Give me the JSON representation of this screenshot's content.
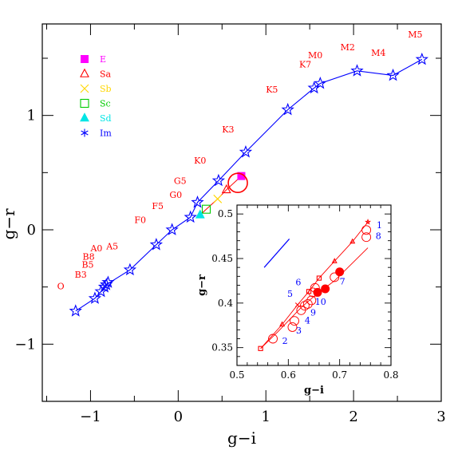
{
  "chart_data": [
    {
      "type": "scatter",
      "xlabel": "g−i",
      "ylabel": "g−r",
      "xlim": [
        -1.55,
        3.0
      ],
      "ylim": [
        -1.5,
        1.8
      ],
      "xticks": [
        -1,
        0,
        1,
        2,
        3
      ],
      "yticks": [
        -1,
        0,
        1
      ],
      "xtick_labels": [
        "−1",
        "0",
        "1",
        "2",
        "3"
      ],
      "ytick_labels": [
        "−1",
        "0",
        "1"
      ],
      "grid": false,
      "legend_position": "top-left",
      "legend": [
        {
          "label": "E",
          "marker": "filled-square",
          "color": "#ff00ff"
        },
        {
          "label": "Sa",
          "marker": "open-triangle",
          "color": "#ff0000"
        },
        {
          "label": "Sb",
          "marker": "cross",
          "color": "#ffd700"
        },
        {
          "label": "Sc",
          "marker": "open-square",
          "color": "#00cc00"
        },
        {
          "label": "Sd",
          "marker": "filled-triangle",
          "color": "#00e5e5"
        },
        {
          "label": "Im",
          "marker": "asterisk",
          "color": "#0000ff"
        }
      ],
      "series": [
        {
          "name": "Im",
          "marker": "open-star",
          "color": "#0000ff",
          "x": [
            -1.17,
            -0.95,
            -0.88,
            -0.84,
            -0.8,
            -0.82,
            -0.55,
            -0.25,
            -0.07,
            0.14,
            0.22,
            0.46,
            0.77,
            1.25,
            1.55,
            1.62,
            2.04,
            2.45,
            2.78
          ],
          "y": [
            -0.71,
            -0.6,
            -0.54,
            -0.5,
            -0.46,
            -0.48,
            -0.35,
            -0.13,
            0.0,
            0.11,
            0.24,
            0.43,
            0.68,
            1.05,
            1.24,
            1.28,
            1.39,
            1.35,
            1.49
          ]
        }
      ],
      "galaxy_points": [
        {
          "type": "E",
          "x": 0.72,
          "y": 0.47
        },
        {
          "type": "Sa",
          "x": 0.55,
          "y": 0.35
        },
        {
          "type": "Sb",
          "x": 0.45,
          "y": 0.27
        },
        {
          "type": "Sc",
          "x": 0.32,
          "y": 0.18
        },
        {
          "type": "Sd",
          "x": 0.25,
          "y": 0.13
        }
      ],
      "spectral_labels": [
        {
          "text": "O",
          "x": -1.38,
          "y": -0.52
        },
        {
          "text": "B3",
          "x": -1.18,
          "y": -0.42
        },
        {
          "text": "B5",
          "x": -1.1,
          "y": -0.33
        },
        {
          "text": "B8",
          "x": -1.09,
          "y": -0.26
        },
        {
          "text": "A0",
          "x": -1.0,
          "y": -0.19
        },
        {
          "text": "A5",
          "x": -0.82,
          "y": -0.17
        },
        {
          "text": "F0",
          "x": -0.5,
          "y": 0.06
        },
        {
          "text": "F5",
          "x": -0.3,
          "y": 0.18
        },
        {
          "text": "G0",
          "x": -0.1,
          "y": 0.28
        },
        {
          "text": "G5",
          "x": -0.05,
          "y": 0.4
        },
        {
          "text": "K0",
          "x": 0.18,
          "y": 0.58
        },
        {
          "text": "K3",
          "x": 0.5,
          "y": 0.85
        },
        {
          "text": "K5",
          "x": 1.0,
          "y": 1.2
        },
        {
          "text": "K7",
          "x": 1.38,
          "y": 1.42
        },
        {
          "text": "M0",
          "x": 1.48,
          "y": 1.5
        },
        {
          "text": "M2",
          "x": 1.85,
          "y": 1.57
        },
        {
          "text": "M4",
          "x": 2.2,
          "y": 1.52
        },
        {
          "text": "M5",
          "x": 2.62,
          "y": 1.68
        }
      ]
    },
    {
      "type": "scatter",
      "xlabel": "g−i",
      "ylabel": "g−r",
      "xlim": [
        0.5,
        0.8
      ],
      "ylim": [
        0.33,
        0.51
      ],
      "xticks": [
        0.5,
        0.6,
        0.7,
        0.8
      ],
      "yticks": [
        0.35,
        0.4,
        0.45,
        0.5
      ],
      "xtick_labels": [
        "0.5",
        "0.6",
        "0.7",
        "0.8"
      ],
      "ytick_labels": [
        "0.35",
        "0.4",
        "0.45",
        "0.5"
      ],
      "grid": false,
      "track_upper": {
        "x": [
          0.546,
          0.588,
          0.618,
          0.64,
          0.66,
          0.69,
          0.725,
          0.755
        ],
        "y": [
          0.349,
          0.376,
          0.398,
          0.413,
          0.428,
          0.447,
          0.469,
          0.491
        ],
        "markers": [
          "open-square",
          "open-triangle",
          "cross",
          "open-square",
          "open-square",
          "open-triangle",
          "open-triangle",
          "open-star"
        ]
      },
      "track_lower": {
        "x": [
          0.546,
          0.58,
          0.625,
          0.655,
          0.69,
          0.755
        ],
        "y": [
          0.349,
          0.368,
          0.395,
          0.41,
          0.425,
          0.462
        ]
      },
      "open_circles": {
        "x": [
          0.57,
          0.608,
          0.612,
          0.625,
          0.632,
          0.638,
          0.645,
          0.648,
          0.652,
          0.69,
          0.752,
          0.752
        ],
        "y": [
          0.36,
          0.373,
          0.38,
          0.392,
          0.397,
          0.399,
          0.403,
          0.412,
          0.417,
          0.429,
          0.474,
          0.482
        ]
      },
      "filled_circles": {
        "x": [
          0.657,
          0.672,
          0.7
        ],
        "y": [
          0.412,
          0.416,
          0.435
        ]
      },
      "point_labels": [
        {
          "text": "1",
          "x": 0.772,
          "y": 0.484
        },
        {
          "text": "8",
          "x": 0.77,
          "y": 0.472
        },
        {
          "text": "2",
          "x": 0.588,
          "y": 0.354
        },
        {
          "text": "3",
          "x": 0.615,
          "y": 0.366
        },
        {
          "text": "4",
          "x": 0.632,
          "y": 0.377
        },
        {
          "text": "5",
          "x": 0.598,
          "y": 0.407
        },
        {
          "text": "6",
          "x": 0.614,
          "y": 0.42
        },
        {
          "text": "7",
          "x": 0.7,
          "y": 0.421
        },
        {
          "text": "9",
          "x": 0.643,
          "y": 0.386
        },
        {
          "text": "10",
          "x": 0.652,
          "y": 0.398
        }
      ],
      "reddening_vector": {
        "x": [
          0.553,
          0.602
        ],
        "y": [
          0.44,
          0.472
        ]
      }
    }
  ]
}
